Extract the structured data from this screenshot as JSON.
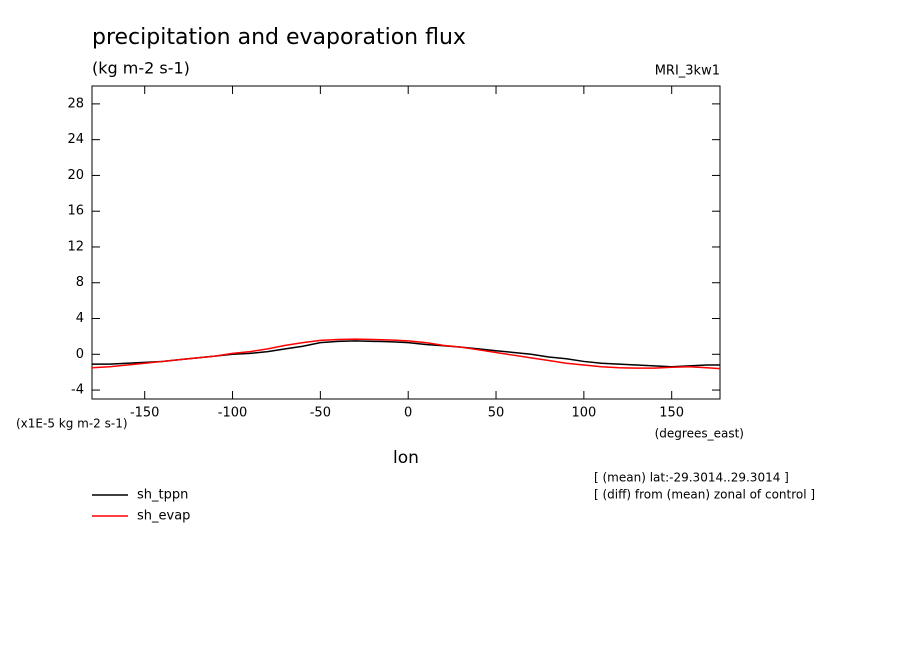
{
  "chart_data": {
    "type": "line",
    "title": "precipitation and evaporation flux",
    "subtitle": "(kg m-2 s-1)",
    "dataset": "MRI_3kw1",
    "y_units": "(x1E-5 kg m-2 s-1)",
    "x_units": "(degrees_east)",
    "xlabel": "lon",
    "notes": [
      "[ (mean) lat:-29.3014..29.3014 ]",
      "[ (diff) from (mean) zonal of control ]"
    ],
    "x": [
      -180,
      -170,
      -160,
      -150,
      -140,
      -130,
      -120,
      -110,
      -100,
      -90,
      -80,
      -70,
      -60,
      -50,
      -40,
      -30,
      -20,
      -10,
      0,
      10,
      20,
      30,
      40,
      50,
      60,
      70,
      80,
      90,
      100,
      110,
      120,
      130,
      140,
      150,
      160,
      170,
      177.5
    ],
    "series": [
      {
        "name": "sh_tppn",
        "color": "#000000",
        "values": [
          -1.1,
          -1.1,
          -1.0,
          -0.9,
          -0.8,
          -0.6,
          -0.4,
          -0.2,
          0.0,
          0.1,
          0.3,
          0.6,
          0.9,
          1.3,
          1.45,
          1.5,
          1.45,
          1.4,
          1.3,
          1.1,
          0.95,
          0.8,
          0.6,
          0.4,
          0.2,
          0.0,
          -0.3,
          -0.5,
          -0.8,
          -1.0,
          -1.1,
          -1.2,
          -1.3,
          -1.4,
          -1.3,
          -1.2,
          -1.2
        ]
      },
      {
        "name": "sh_evap",
        "color": "#ff0000",
        "values": [
          -1.5,
          -1.4,
          -1.2,
          -1.0,
          -0.8,
          -0.6,
          -0.4,
          -0.2,
          0.1,
          0.3,
          0.6,
          1.0,
          1.3,
          1.55,
          1.65,
          1.7,
          1.65,
          1.6,
          1.5,
          1.3,
          1.0,
          0.8,
          0.5,
          0.2,
          -0.1,
          -0.4,
          -0.7,
          -1.0,
          -1.2,
          -1.4,
          -1.5,
          -1.55,
          -1.55,
          -1.45,
          -1.4,
          -1.5,
          -1.6
        ]
      }
    ],
    "xlim": [
      -180,
      177.5
    ],
    "xticks": [
      -150,
      -100,
      -50,
      0,
      50,
      100,
      150
    ],
    "ylim": [
      -5,
      30
    ],
    "yticks": [
      -4,
      0,
      4,
      8,
      12,
      16,
      20,
      24,
      28
    ]
  }
}
